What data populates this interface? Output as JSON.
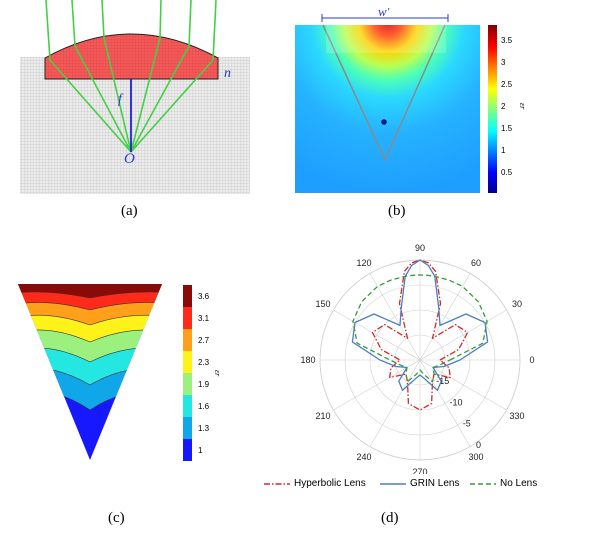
{
  "captions": {
    "a": "(a)",
    "b": "(b)",
    "c": "(c)",
    "d": "(d)"
  },
  "panel_a": {
    "label_n": "n",
    "label_f": "f",
    "label_O": "O"
  },
  "panel_b": {
    "width_label": "w'",
    "colorbar_label": "εr",
    "colorbar_ticks": [
      "3.5",
      "3",
      "2.5",
      "2",
      "1.5",
      "1",
      "0.5"
    ]
  },
  "panel_c": {
    "colorbar_label": "εr",
    "colorbar_ticks": [
      "3.6",
      "3.1",
      "2.7",
      "2.3",
      "1.9",
      "1.6",
      "1.3",
      "1"
    ]
  },
  "chart_data": {
    "type": "polar",
    "angle_labels": [
      "0",
      "30",
      "60",
      "90",
      "120",
      "150",
      "180",
      "210",
      "240",
      "270",
      "300",
      "330"
    ],
    "radial_labels": [
      "-15",
      "-10",
      "-5",
      "0"
    ],
    "rlim": [
      -20,
      0
    ],
    "series": [
      {
        "name": "Hyperbolic Lens",
        "color": "#d62728",
        "dash": "dashdot",
        "theta": [
          0,
          15,
          30,
          45,
          60,
          70,
          80,
          85,
          90,
          95,
          100,
          110,
          120,
          135,
          150,
          165,
          180,
          195,
          210,
          225,
          240,
          255,
          270,
          285,
          300,
          315,
          330,
          345
        ],
        "r": [
          -16,
          -12,
          -9,
          -10,
          -15,
          -8,
          -2,
          -0.5,
          0,
          -0.5,
          -2,
          -8,
          -15,
          -10,
          -9,
          -12,
          -16,
          -14,
          -13,
          -16,
          -15,
          -11,
          -10,
          -11,
          -15,
          -16,
          -13,
          -14
        ]
      },
      {
        "name": "GRIN Lens",
        "color": "#4a7fc1",
        "dash": "solid",
        "theta": [
          0,
          15,
          30,
          45,
          60,
          70,
          80,
          85,
          90,
          95,
          100,
          110,
          120,
          135,
          150,
          165,
          180,
          195,
          210,
          225,
          240,
          255,
          270,
          285,
          300,
          315,
          330,
          345
        ],
        "r": [
          -12,
          -6,
          -5,
          -7,
          -12,
          -9,
          -3,
          -1,
          0,
          -1,
          -3,
          -9,
          -12,
          -7,
          -5,
          -6,
          -12,
          -15,
          -17,
          -14,
          -13,
          -16,
          -17,
          -16,
          -13,
          -14,
          -17,
          -15
        ]
      },
      {
        "name": "No Lens",
        "color": "#3a9a3a",
        "dash": "dashed",
        "theta": [
          0,
          15,
          30,
          45,
          60,
          70,
          80,
          85,
          90,
          95,
          100,
          110,
          120,
          135,
          150,
          165,
          180,
          195,
          210,
          225,
          240,
          255,
          270,
          285,
          300,
          315,
          330,
          345
        ],
        "r": [
          -14,
          -7,
          -4.5,
          -3.5,
          -3,
          -3,
          -3,
          -3,
          -3,
          -3,
          -3,
          -3,
          -3,
          -3.5,
          -4.5,
          -7,
          -14,
          -16,
          -17,
          -16,
          -15,
          -17,
          -18,
          -17,
          -15,
          -16,
          -17,
          -16
        ]
      }
    ]
  }
}
